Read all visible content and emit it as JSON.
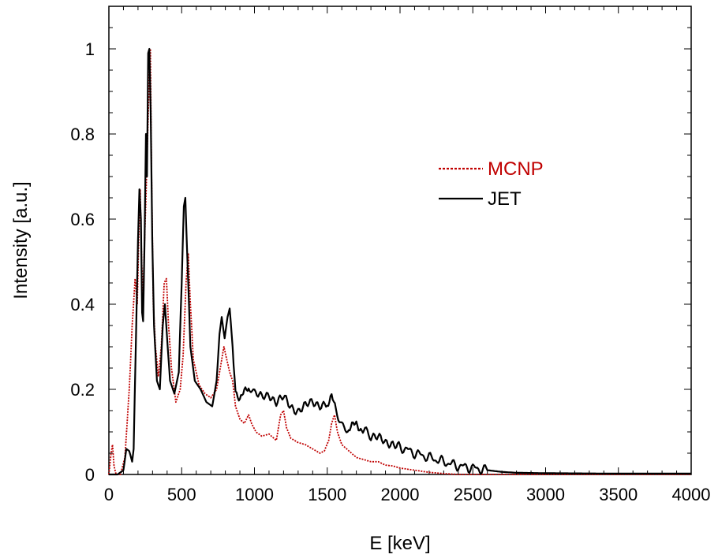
{
  "chart_data": {
    "type": "line",
    "title": "",
    "xlabel": "E [keV]",
    "ylabel": "Intensity [a.u.]",
    "xlim": [
      0,
      4000
    ],
    "ylim": [
      0,
      1.1
    ],
    "xticks": [
      0,
      500,
      1000,
      1500,
      2000,
      2500,
      3000,
      3500,
      4000
    ],
    "yticks": [
      0,
      0.2,
      0.4,
      0.6,
      0.8,
      1
    ],
    "ytick_labels": [
      "0",
      "0.2",
      "0.4",
      "0.6",
      "0.8",
      "1"
    ],
    "grid": false,
    "legend_position": "center-right",
    "series": [
      {
        "name": "MCNP",
        "color": "#c00000",
        "style": "dotted",
        "points": [
          [
            0,
            0.0
          ],
          [
            15,
            0.05
          ],
          [
            25,
            0.07
          ],
          [
            35,
            0.02
          ],
          [
            50,
            0.0
          ],
          [
            80,
            0.0
          ],
          [
            110,
            0.04
          ],
          [
            140,
            0.2
          ],
          [
            160,
            0.35
          ],
          [
            180,
            0.46
          ],
          [
            195,
            0.4
          ],
          [
            205,
            0.55
          ],
          [
            215,
            0.67
          ],
          [
            225,
            0.5
          ],
          [
            235,
            0.42
          ],
          [
            245,
            0.55
          ],
          [
            255,
            0.65
          ],
          [
            265,
            0.78
          ],
          [
            275,
            0.9
          ],
          [
            285,
            1.0
          ],
          [
            293,
            0.7
          ],
          [
            305,
            0.4
          ],
          [
            320,
            0.3
          ],
          [
            340,
            0.23
          ],
          [
            360,
            0.3
          ],
          [
            380,
            0.45
          ],
          [
            395,
            0.46
          ],
          [
            410,
            0.35
          ],
          [
            430,
            0.25
          ],
          [
            460,
            0.17
          ],
          [
            490,
            0.2
          ],
          [
            510,
            0.28
          ],
          [
            530,
            0.45
          ],
          [
            545,
            0.52
          ],
          [
            560,
            0.4
          ],
          [
            580,
            0.27
          ],
          [
            620,
            0.21
          ],
          [
            660,
            0.19
          ],
          [
            700,
            0.18
          ],
          [
            740,
            0.2
          ],
          [
            770,
            0.26
          ],
          [
            790,
            0.3
          ],
          [
            810,
            0.27
          ],
          [
            830,
            0.24
          ],
          [
            850,
            0.22
          ],
          [
            870,
            0.16
          ],
          [
            900,
            0.13
          ],
          [
            930,
            0.12
          ],
          [
            960,
            0.14
          ],
          [
            980,
            0.12
          ],
          [
            1010,
            0.1
          ],
          [
            1050,
            0.09
          ],
          [
            1100,
            0.095
          ],
          [
            1150,
            0.08
          ],
          [
            1180,
            0.14
          ],
          [
            1200,
            0.15
          ],
          [
            1220,
            0.11
          ],
          [
            1250,
            0.085
          ],
          [
            1300,
            0.075
          ],
          [
            1350,
            0.07
          ],
          [
            1400,
            0.06
          ],
          [
            1450,
            0.05
          ],
          [
            1480,
            0.055
          ],
          [
            1510,
            0.08
          ],
          [
            1530,
            0.12
          ],
          [
            1550,
            0.14
          ],
          [
            1570,
            0.1
          ],
          [
            1600,
            0.07
          ],
          [
            1650,
            0.055
          ],
          [
            1700,
            0.04
          ],
          [
            1750,
            0.035
          ],
          [
            1800,
            0.03
          ],
          [
            1850,
            0.03
          ],
          [
            1900,
            0.022
          ],
          [
            1950,
            0.02
          ],
          [
            2000,
            0.015
          ],
          [
            2100,
            0.01
          ],
          [
            2200,
            0.005
          ],
          [
            2300,
            0.002
          ],
          [
            2400,
            0.0
          ],
          [
            4000,
            0.0
          ]
        ]
      },
      {
        "name": "JET",
        "color": "#000000",
        "style": "solid",
        "points": [
          [
            0,
            0.0
          ],
          [
            60,
            0.0
          ],
          [
            100,
            0.01
          ],
          [
            120,
            0.06
          ],
          [
            140,
            0.055
          ],
          [
            160,
            0.03
          ],
          [
            170,
            0.06
          ],
          [
            185,
            0.3
          ],
          [
            200,
            0.55
          ],
          [
            210,
            0.67
          ],
          [
            220,
            0.6
          ],
          [
            228,
            0.38
          ],
          [
            235,
            0.36
          ],
          [
            245,
            0.55
          ],
          [
            255,
            0.8
          ],
          [
            262,
            0.7
          ],
          [
            270,
            0.99
          ],
          [
            278,
            1.0
          ],
          [
            287,
            0.85
          ],
          [
            298,
            0.55
          ],
          [
            310,
            0.35
          ],
          [
            330,
            0.22
          ],
          [
            350,
            0.2
          ],
          [
            370,
            0.35
          ],
          [
            385,
            0.4
          ],
          [
            400,
            0.32
          ],
          [
            420,
            0.22
          ],
          [
            450,
            0.19
          ],
          [
            480,
            0.24
          ],
          [
            500,
            0.45
          ],
          [
            515,
            0.63
          ],
          [
            525,
            0.65
          ],
          [
            540,
            0.5
          ],
          [
            560,
            0.3
          ],
          [
            590,
            0.22
          ],
          [
            630,
            0.2
          ],
          [
            670,
            0.17
          ],
          [
            710,
            0.16
          ],
          [
            740,
            0.22
          ],
          [
            760,
            0.33
          ],
          [
            775,
            0.37
          ],
          [
            795,
            0.32
          ],
          [
            815,
            0.37
          ],
          [
            830,
            0.39
          ],
          [
            850,
            0.3
          ],
          [
            870,
            0.2
          ],
          [
            900,
            0.18
          ],
          [
            930,
            0.19
          ],
          [
            960,
            0.2
          ],
          [
            1000,
            0.19
          ],
          [
            1050,
            0.18
          ],
          [
            1100,
            0.19
          ],
          [
            1150,
            0.17
          ],
          [
            1200,
            0.18
          ],
          [
            1250,
            0.16
          ],
          [
            1300,
            0.15
          ],
          [
            1350,
            0.16
          ],
          [
            1400,
            0.17
          ],
          [
            1450,
            0.165
          ],
          [
            1500,
            0.165
          ],
          [
            1530,
            0.18
          ],
          [
            1560,
            0.15
          ],
          [
            1600,
            0.12
          ],
          [
            1640,
            0.1
          ],
          [
            1670,
            0.11
          ],
          [
            1700,
            0.12
          ],
          [
            1730,
            0.11
          ],
          [
            1760,
            0.1
          ],
          [
            1800,
            0.09
          ],
          [
            1850,
            0.085
          ],
          [
            1900,
            0.075
          ],
          [
            1950,
            0.075
          ],
          [
            2000,
            0.065
          ],
          [
            2100,
            0.05
          ],
          [
            2200,
            0.04
          ],
          [
            2300,
            0.03
          ],
          [
            2400,
            0.02
          ],
          [
            2500,
            0.015
          ],
          [
            2600,
            0.01
          ],
          [
            2700,
            0.006
          ],
          [
            2800,
            0.004
          ],
          [
            3000,
            0.003
          ],
          [
            3500,
            0.002
          ],
          [
            4000,
            0.002
          ]
        ]
      }
    ]
  }
}
